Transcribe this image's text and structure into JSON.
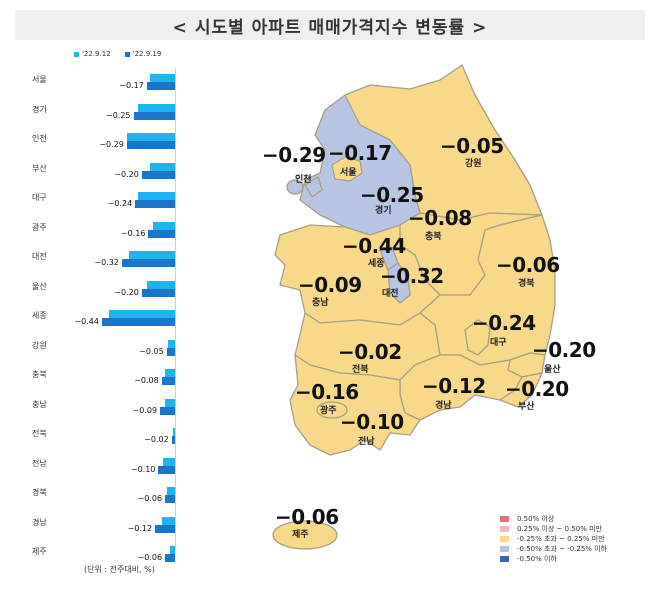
{
  "title": "< 시도별 아파트 매매가격지수 변동률 >",
  "bar_legend": [
    {
      "label": "'22.9.12",
      "color": "#1fb4f0"
    },
    {
      "label": "'22.9.19",
      "color": "#1a76c8"
    }
  ],
  "unit_note": "(단위 : 전주대비, %)",
  "bars": [
    {
      "region": "서울",
      "prev": -0.15,
      "curr": -0.17,
      "curr_label": "-0.17"
    },
    {
      "region": "경기",
      "prev": -0.22,
      "curr": -0.25,
      "curr_label": "-0.25"
    },
    {
      "region": "인천",
      "prev": -0.29,
      "curr": -0.29,
      "curr_label": "-0.29"
    },
    {
      "region": "부산",
      "prev": -0.15,
      "curr": -0.2,
      "curr_label": "-0.20"
    },
    {
      "region": "대구",
      "prev": -0.22,
      "curr": -0.24,
      "curr_label": "-0.24"
    },
    {
      "region": "광주",
      "prev": -0.13,
      "curr": -0.16,
      "curr_label": "-0.16"
    },
    {
      "region": "대전",
      "prev": -0.28,
      "curr": -0.32,
      "curr_label": "-0.32"
    },
    {
      "region": "울산",
      "prev": -0.17,
      "curr": -0.2,
      "curr_label": "-0.20"
    },
    {
      "region": "세종",
      "prev": -0.4,
      "curr": -0.44,
      "curr_label": "-0.44"
    },
    {
      "region": "강원",
      "prev": -0.04,
      "curr": -0.05,
      "curr_label": "-0.05"
    },
    {
      "region": "충북",
      "prev": -0.06,
      "curr": -0.08,
      "curr_label": "-0.08"
    },
    {
      "region": "충남",
      "prev": -0.06,
      "curr": -0.09,
      "curr_label": "-0.09"
    },
    {
      "region": "전북",
      "prev": -0.01,
      "curr": -0.02,
      "curr_label": "-0.02"
    },
    {
      "region": "전남",
      "prev": -0.07,
      "curr": -0.1,
      "curr_label": "-0.10"
    },
    {
      "region": "경북",
      "prev": -0.05,
      "curr": -0.06,
      "curr_label": "-0.06"
    },
    {
      "region": "경남",
      "prev": -0.08,
      "curr": -0.12,
      "curr_label": "-0.12"
    },
    {
      "region": "제주",
      "prev": -0.03,
      "curr": -0.06,
      "curr_label": "-0.06"
    }
  ],
  "map_labels": {
    "incheon": {
      "value": "-0.29",
      "name": "인천"
    },
    "seoul": {
      "value": "-0.17",
      "name": "서울"
    },
    "gyeonggi": {
      "value": "-0.25",
      "name": "경기"
    },
    "gangwon": {
      "value": "-0.05",
      "name": "강원"
    },
    "chungbuk": {
      "value": "-0.08",
      "name": "충북"
    },
    "sejong": {
      "value": "-0.44",
      "name": "세종"
    },
    "daejeon": {
      "value": "-0.32",
      "name": "대전"
    },
    "chungnam": {
      "value": "-0.09",
      "name": "충남"
    },
    "gyeongbuk": {
      "value": "-0.06",
      "name": "경북"
    },
    "daegu": {
      "value": "-0.24",
      "name": "대구"
    },
    "jeonbuk": {
      "value": "-0.02",
      "name": "전북"
    },
    "ulsan": {
      "value": "-0.20",
      "name": "울산"
    },
    "gwangju": {
      "value": "-0.16",
      "name": "광주"
    },
    "gyeongnam": {
      "value": "-0.12",
      "name": "경남"
    },
    "busan": {
      "value": "-0.20",
      "name": "부산"
    },
    "jeonnam": {
      "value": "-0.10",
      "name": "전남"
    },
    "jeju": {
      "value": "-0.06",
      "name": "제주"
    }
  },
  "map_legend": [
    {
      "label": "0.50% 이상",
      "color": "#e0707a"
    },
    {
      "label": "0.25% 이상 ~ 0.50% 미만",
      "color": "#f2b8c0"
    },
    {
      "label": "-0.25% 초과 ~ 0.25% 미만",
      "color": "#f8d98a"
    },
    {
      "label": "-0.50% 초과 ~ -0.25% 이하",
      "color": "#b8c4e4"
    },
    {
      "label": "-0.50% 이하",
      "color": "#3a66b0"
    }
  ],
  "colors": {
    "yellow": "#f8d98a",
    "blue": "#b8c4e4",
    "border": "#a99f86"
  },
  "chart_data": {
    "type": "bar",
    "orientation": "horizontal",
    "title": "< 시도별 아파트 매매가격지수 변동률 >",
    "xlabel": "(단위 : 전주대비, %)",
    "ylabel": "",
    "categories": [
      "서울",
      "경기",
      "인천",
      "부산",
      "대구",
      "광주",
      "대전",
      "울산",
      "세종",
      "강원",
      "충북",
      "충남",
      "전북",
      "전남",
      "경북",
      "경남",
      "제주"
    ],
    "series": [
      {
        "name": "'22.9.12",
        "values": [
          -0.15,
          -0.22,
          -0.29,
          -0.15,
          -0.22,
          -0.13,
          -0.28,
          -0.17,
          -0.4,
          -0.04,
          -0.06,
          -0.06,
          -0.01,
          -0.07,
          -0.05,
          -0.08,
          -0.03
        ]
      },
      {
        "name": "'22.9.19",
        "values": [
          -0.17,
          -0.25,
          -0.29,
          -0.2,
          -0.24,
          -0.16,
          -0.32,
          -0.2,
          -0.44,
          -0.05,
          -0.08,
          -0.09,
          -0.02,
          -0.1,
          -0.06,
          -0.12,
          -0.06
        ]
      }
    ],
    "xlim": [
      -0.45,
      0
    ],
    "legend_position": "top",
    "grid": false
  }
}
